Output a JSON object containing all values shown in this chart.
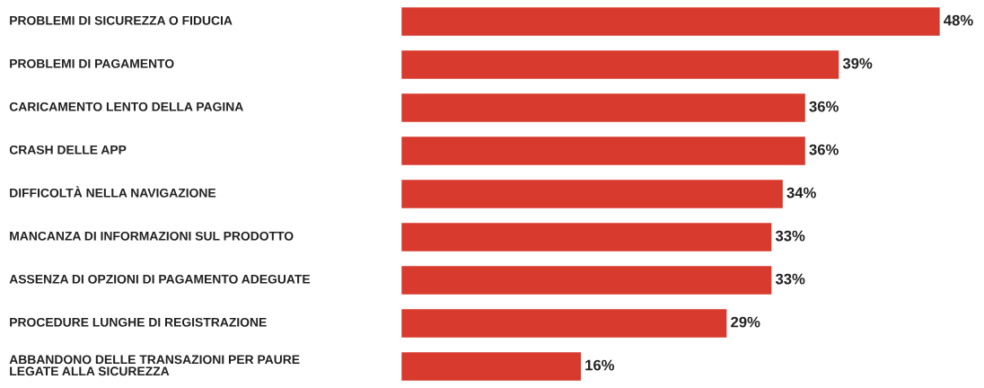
{
  "chart_data": {
    "type": "bar",
    "orientation": "horizontal",
    "categories": [
      "PROBLEMI DI SICUREZZA O FIDUCIA",
      "PROBLEMI DI PAGAMENTO",
      "CARICAMENTO LENTO DELLA PAGINA",
      "CRASH DELLE APP",
      "DIFFICOLTÀ NELLA NAVIGAZIONE",
      "MANCANZA DI INFORMAZIONI SUL PRODOTTO",
      "ASSENZA DI OPZIONI DI PAGAMENTO ADEGUATE",
      "PROCEDURE LUNGHE DI REGISTRAZIONE",
      "ABBANDONO DELLE TRANSAZIONI PER PAURE\nLEGATE ALLA SICUREZZA"
    ],
    "values": [
      48,
      39,
      36,
      36,
      34,
      33,
      33,
      29,
      16
    ],
    "value_labels": [
      "48%",
      "39%",
      "36%",
      "36%",
      "34%",
      "33%",
      "33%",
      "29%",
      "16%"
    ],
    "color": "#d83a2e"
  }
}
